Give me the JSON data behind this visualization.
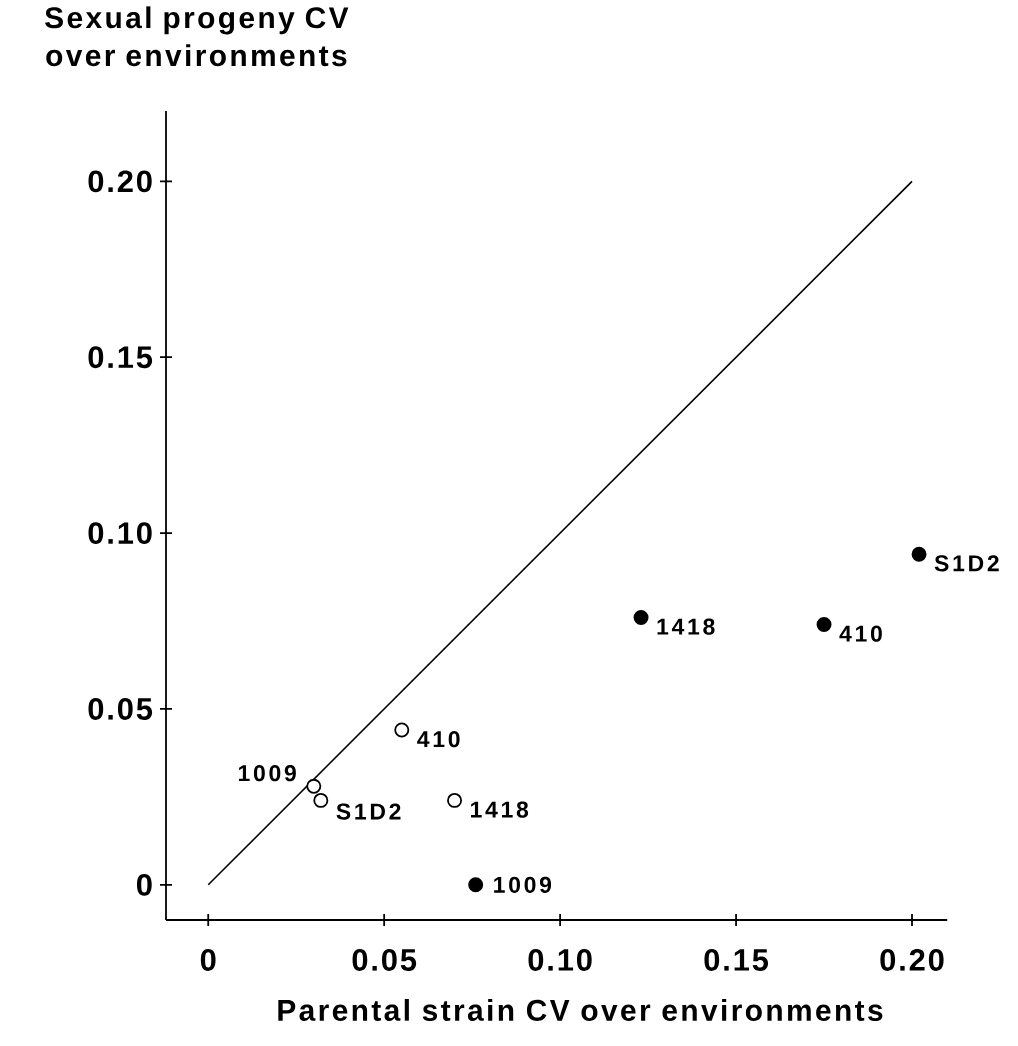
{
  "chart_data": {
    "type": "scatter",
    "xlabel": "Parental strain CV over environments",
    "ylabel": "Sexual progeny CV over environments",
    "xlim": [
      -0.012,
      0.21
    ],
    "ylim": [
      -0.01,
      0.22
    ],
    "xticks": [
      0,
      0.05,
      {
        "value": 0.1,
        "label": "0.10"
      },
      0.15,
      {
        "value": 0.2,
        "label": "0.20"
      }
    ],
    "yticks": [
      0,
      0.05,
      {
        "value": 0.1,
        "label": "0.10"
      },
      0.15,
      {
        "value": 0.2,
        "label": "0.20"
      }
    ],
    "grid": false,
    "series": [
      {
        "type": "line",
        "color": "#000000",
        "marker": "none",
        "line_style": "solid",
        "x": [
          0,
          0.2
        ],
        "values": [
          0,
          0.2
        ]
      },
      {
        "color": "#ffffff",
        "marker": "circle",
        "x": [
          0.03,
          0.032,
          0.055,
          0.07
        ],
        "values": [
          0.028,
          0.024,
          0.044,
          0.024
        ]
      },
      {
        "color": "#000000",
        "marker": "circle",
        "x": [
          0.076,
          0.123,
          0.175,
          0.202
        ],
        "values": [
          0.0,
          0.076,
          0.074,
          0.094
        ]
      }
    ],
    "annotations": [
      {
        "text": "1009",
        "x": 0.03,
        "y": 0.028
      },
      {
        "text": "S1D2",
        "x": 0.032,
        "y": 0.024
      },
      {
        "text": "410",
        "x": 0.055,
        "y": 0.044
      },
      {
        "text": "1418",
        "x": 0.07,
        "y": 0.024
      },
      {
        "text": "1009",
        "x": 0.076,
        "y": 0.0
      },
      {
        "text": "1418",
        "x": 0.123,
        "y": 0.076
      },
      {
        "text": "410",
        "x": 0.175,
        "y": 0.074
      },
      {
        "text": "S1D2",
        "x": 0.202,
        "y": 0.094
      }
    ]
  }
}
